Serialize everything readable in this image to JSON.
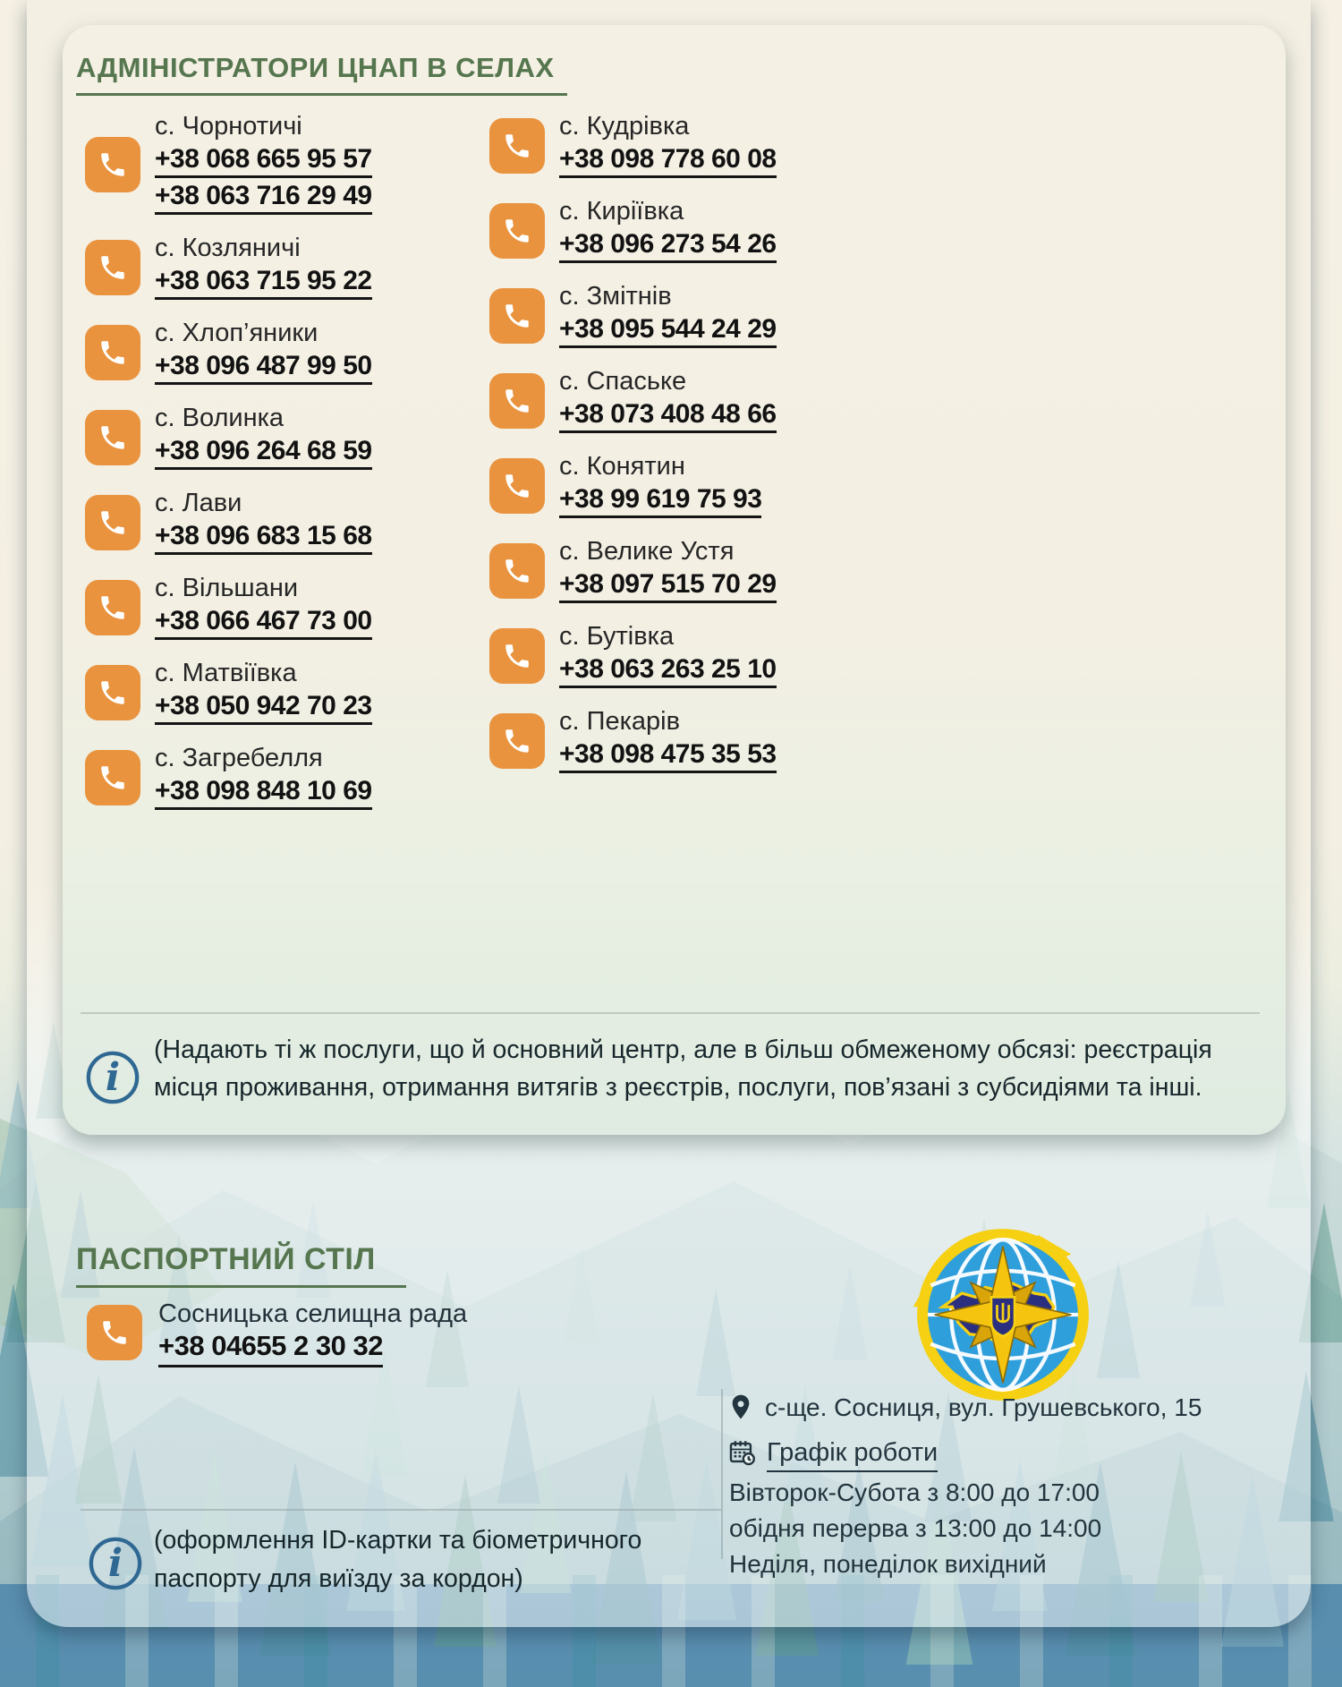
{
  "colors": {
    "accent_orange": "#e9933e",
    "heading_green": "#55764e",
    "info_blue": "#2f6893",
    "text_dark": "#1a1a1a"
  },
  "icons": {
    "phone": "phone-receiver",
    "info": "circled-i",
    "address": "location-pin",
    "schedule": "calendar-clock",
    "logo": "ukraine-migration-service-emblem"
  },
  "sections": {
    "villages": {
      "title": "АДМІНІСТРАТОРИ ЦНАП В СЕЛАХ",
      "columns": {
        "left": [
          {
            "village": "с. Чорнотичі",
            "phones": [
              "+38 068 665 95 57",
              "+38 063 716 29 49"
            ]
          },
          {
            "village": "с. Козляничі",
            "phones": [
              "+38 063 715 95 22"
            ]
          },
          {
            "village": "с. Хлоп’яники",
            "phones": [
              "+38 096 487 99 50"
            ]
          },
          {
            "village": "с. Волинка",
            "phones": [
              "+38 096 264 68 59"
            ]
          },
          {
            "village": "с. Лави",
            "phones": [
              "+38 096 683 15 68"
            ]
          },
          {
            "village": "с. Вільшани",
            "phones": [
              "+38 066 467 73 00"
            ]
          },
          {
            "village": "с. Матвіївка",
            "phones": [
              "+38 050 942 70 23"
            ]
          },
          {
            "village": "с. Загребелля",
            "phones": [
              "+38 098 848 10 69"
            ]
          }
        ],
        "right": [
          {
            "village": "с. Кудрівка",
            "phones": [
              "+38 098 778 60 08"
            ]
          },
          {
            "village": "с. Киріївка",
            "phones": [
              "+38 096 273 54 26"
            ]
          },
          {
            "village": "с. Змітнів",
            "phones": [
              "+38 095 544 24 29"
            ]
          },
          {
            "village": "с. Спаське",
            "phones": [
              "+38 073 408 48 66"
            ]
          },
          {
            "village": "с. Конятин",
            "phones": [
              "+38 99 619 75 93"
            ]
          },
          {
            "village": "с. Велике Устя",
            "phones": [
              "+38 097 515 70 29"
            ]
          },
          {
            "village": "с. Бутівка",
            "phones": [
              "+38 063 263 25 10"
            ]
          },
          {
            "village": "с. Пекарів",
            "phones": [
              "+38 098 475 35 53"
            ]
          }
        ]
      },
      "note": "(Надають ті ж послуги, що й основний центр, але в більш обмеженому обсязі: реєстрація місця проживання, отримання витягів з реєстрів, послуги, пов’язані з субсидіями та інші."
    },
    "passport": {
      "title": "ПАСПОРТНИЙ СТІЛ",
      "office": "Сосницька селищна рада",
      "phone": "+38 04655 2 30 32",
      "address": "с-ще. Сосниця, вул. Грушевського, 15",
      "schedule": {
        "title": "Графік роботи",
        "lines": [
          "Вівторок-Субота з 8:00 до 17:00",
          "обідня перерва з 13:00 до 14:00",
          "Неділя, понеділок вихідний"
        ]
      },
      "note": "(оформлення ID-картки та біометричного паспорту для виїзду за кордон)"
    }
  }
}
